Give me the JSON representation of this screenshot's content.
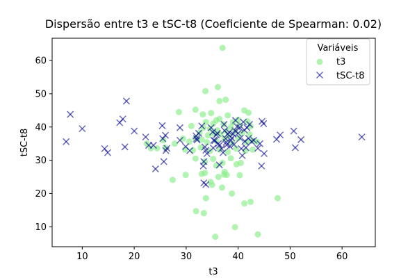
{
  "chart_data": {
    "type": "scatter",
    "title": "Dispersão entre t3 e tSC-t8 (Coeficiente de Spearman: 0.02)",
    "xlabel": "t3",
    "ylabel": "tSC-t8",
    "xlim": [
      4.2,
      66.4
    ],
    "ylim": [
      4.0,
      66.7
    ],
    "xticks": [
      10,
      20,
      30,
      40,
      50,
      60
    ],
    "yticks": [
      10,
      20,
      30,
      40,
      50,
      60
    ],
    "grid": false,
    "legend": {
      "title": "Variáveis",
      "placement": "top-right"
    },
    "series": [
      {
        "name": "t3",
        "marker": "circle",
        "color": "#90ee90",
        "points": [
          [
            37.0,
            63.8
          ],
          [
            36.1,
            52.0
          ],
          [
            33.7,
            50.8
          ],
          [
            36.4,
            47.8
          ],
          [
            37.6,
            48.2
          ],
          [
            28.6,
            44.5
          ],
          [
            31.8,
            45.2
          ],
          [
            33.2,
            43.8
          ],
          [
            34.8,
            44.2
          ],
          [
            38.0,
            43.5
          ],
          [
            41.2,
            45.0
          ],
          [
            42.0,
            44.3
          ],
          [
            35.8,
            42.0
          ],
          [
            36.4,
            42.4
          ],
          [
            39.0,
            41.5
          ],
          [
            40.0,
            42.2
          ],
          [
            33.8,
            41.5
          ],
          [
            35.2,
            41.0
          ],
          [
            37.2,
            40.8
          ],
          [
            31.0,
            40.3
          ],
          [
            33.3,
            39.8
          ],
          [
            34.6,
            39.5
          ],
          [
            36.0,
            39.0
          ],
          [
            37.7,
            38.8
          ],
          [
            38.6,
            40.0
          ],
          [
            40.3,
            40.5
          ],
          [
            41.8,
            41.7
          ],
          [
            42.4,
            40.2
          ],
          [
            32.6,
            38.3
          ],
          [
            34.2,
            37.5
          ],
          [
            35.3,
            38.0
          ],
          [
            36.6,
            37.8
          ],
          [
            38.2,
            37.4
          ],
          [
            39.4,
            38.6
          ],
          [
            40.8,
            38.2
          ],
          [
            42.2,
            37.8
          ],
          [
            25.6,
            36.0
          ],
          [
            27.8,
            35.0
          ],
          [
            29.4,
            36.5
          ],
          [
            30.6,
            35.6
          ],
          [
            31.8,
            36.6
          ],
          [
            33.0,
            36.2
          ],
          [
            34.0,
            35.4
          ],
          [
            35.8,
            35.8
          ],
          [
            37.4,
            36.4
          ],
          [
            38.8,
            35.2
          ],
          [
            40.0,
            36.6
          ],
          [
            41.6,
            35.4
          ],
          [
            42.6,
            36.0
          ],
          [
            43.6,
            35.6
          ],
          [
            22.4,
            35.0
          ],
          [
            23.2,
            33.6
          ],
          [
            24.4,
            33.6
          ],
          [
            26.0,
            33.8
          ],
          [
            29.8,
            33.2
          ],
          [
            31.3,
            33.0
          ],
          [
            32.8,
            33.8
          ],
          [
            34.6,
            32.8
          ],
          [
            36.4,
            33.2
          ],
          [
            38.0,
            32.5
          ],
          [
            39.6,
            33.5
          ],
          [
            41.4,
            32.8
          ],
          [
            42.8,
            33.2
          ],
          [
            31.8,
            30.5
          ],
          [
            33.6,
            29.6
          ],
          [
            35.2,
            30.4
          ],
          [
            37.0,
            29.2
          ],
          [
            38.6,
            30.6
          ],
          [
            40.5,
            29.2
          ],
          [
            35.8,
            28.4
          ],
          [
            37.4,
            26.5
          ],
          [
            39.7,
            28.8
          ],
          [
            33.0,
            25.9
          ],
          [
            33.6,
            26.2
          ],
          [
            36.2,
            25.0
          ],
          [
            37.3,
            25.7
          ],
          [
            37.8,
            25.6
          ],
          [
            40.3,
            25.5
          ],
          [
            27.4,
            24.1
          ],
          [
            29.9,
            25.6
          ],
          [
            34.7,
            23.5
          ],
          [
            35.0,
            22.6
          ],
          [
            36.9,
            21.8
          ],
          [
            33.8,
            18.6
          ],
          [
            38.8,
            20.0
          ],
          [
            41.2,
            17.0
          ],
          [
            42.4,
            17.5
          ],
          [
            47.6,
            18.6
          ],
          [
            31.9,
            14.7
          ],
          [
            33.4,
            14.1
          ],
          [
            39.4,
            9.9
          ],
          [
            35.6,
            7.0
          ],
          [
            43.8,
            7.7
          ]
        ]
      },
      {
        "name": "tSC-t8",
        "marker": "x",
        "color": "#00008b",
        "points": [
          [
            7.7,
            43.8
          ],
          [
            18.5,
            47.8
          ],
          [
            17.2,
            41.3
          ],
          [
            17.8,
            42.4
          ],
          [
            10.0,
            39.5
          ],
          [
            20.0,
            38.8
          ],
          [
            6.9,
            35.6
          ],
          [
            14.3,
            33.5
          ],
          [
            14.9,
            32.3
          ],
          [
            18.2,
            34.0
          ],
          [
            22.2,
            37.0
          ],
          [
            22.8,
            34.5
          ],
          [
            23.7,
            34.5
          ],
          [
            24.1,
            27.4
          ],
          [
            25.4,
            40.4
          ],
          [
            25.5,
            36.5
          ],
          [
            26.0,
            37.5
          ],
          [
            25.7,
            29.6
          ],
          [
            26.1,
            32.9
          ],
          [
            26.3,
            33.6
          ],
          [
            28.8,
            39.8
          ],
          [
            28.8,
            36.0
          ],
          [
            29.9,
            34.1
          ],
          [
            30.7,
            32.9
          ],
          [
            31.9,
            37.3
          ],
          [
            32.1,
            36.1
          ],
          [
            32.4,
            38.1
          ],
          [
            32.0,
            36.5
          ],
          [
            33.0,
            40.3
          ],
          [
            33.6,
            34.0
          ],
          [
            33.8,
            33.0
          ],
          [
            34.0,
            32.0
          ],
          [
            33.4,
            29.6
          ],
          [
            33.3,
            28.3
          ],
          [
            33.4,
            23.2
          ],
          [
            33.8,
            22.7
          ],
          [
            34.8,
            39.8
          ],
          [
            35.1,
            38.5
          ],
          [
            35.3,
            36.0
          ],
          [
            35.2,
            33.7
          ],
          [
            35.5,
            35.9
          ],
          [
            36.0,
            38.1
          ],
          [
            35.8,
            37.6
          ],
          [
            36.2,
            35.0
          ],
          [
            36.4,
            34.5
          ],
          [
            36.4,
            28.6
          ],
          [
            36.8,
            33.5
          ],
          [
            37.1,
            32.3
          ],
          [
            37.3,
            40.8
          ],
          [
            37.4,
            38.9
          ],
          [
            37.6,
            36.5
          ],
          [
            37.7,
            35.4
          ],
          [
            37.8,
            34.6
          ],
          [
            38.0,
            37.9
          ],
          [
            38.3,
            38.4
          ],
          [
            38.4,
            34.2
          ],
          [
            38.6,
            36.0
          ],
          [
            38.8,
            36.7
          ],
          [
            39.0,
            37.9
          ],
          [
            39.2,
            34.7
          ],
          [
            39.5,
            42.0
          ],
          [
            39.4,
            38.9
          ],
          [
            39.8,
            40.1
          ],
          [
            40.0,
            38.1
          ],
          [
            40.3,
            39.8
          ],
          [
            40.4,
            36.6
          ],
          [
            40.6,
            33.5
          ],
          [
            40.8,
            31.4
          ],
          [
            41.0,
            41.5
          ],
          [
            41.2,
            39.1
          ],
          [
            41.3,
            35.7
          ],
          [
            41.5,
            33.8
          ],
          [
            41.7,
            39.8
          ],
          [
            42.0,
            36.6
          ],
          [
            42.2,
            40.8
          ],
          [
            42.6,
            35.6
          ],
          [
            43.0,
            36.0
          ],
          [
            43.8,
            33.6
          ],
          [
            44.2,
            35.0
          ],
          [
            44.5,
            28.3
          ],
          [
            44.6,
            41.7
          ],
          [
            44.9,
            41.0
          ],
          [
            45.0,
            32.0
          ],
          [
            47.4,
            36.3
          ],
          [
            48.1,
            37.6
          ],
          [
            50.7,
            38.8
          ],
          [
            51.0,
            33.8
          ],
          [
            52.1,
            36.2
          ],
          [
            63.8,
            37.0
          ]
        ]
      }
    ]
  }
}
